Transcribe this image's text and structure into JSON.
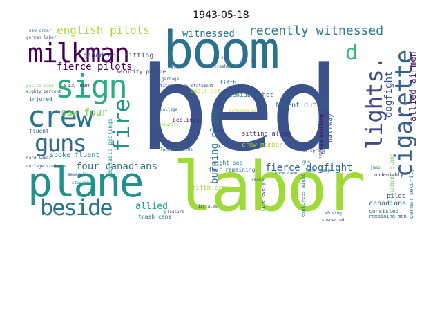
{
  "title": "1943-05-18",
  "words": [
    {
      "text": "bed",
      "color": "#3b528b"
    },
    {
      "text": "labor",
      "color": "#a0da39"
    },
    {
      "text": "boom",
      "color": "#2c728e"
    },
    {
      "text": "plane",
      "color": "#21918c"
    },
    {
      "text": "milkman",
      "color": "#440154"
    },
    {
      "text": "sign",
      "color": "#27ad81"
    },
    {
      "text": "crew",
      "color": "#2c728e"
    },
    {
      "text": "guns",
      "color": "#31688e"
    },
    {
      "text": "fire",
      "color": "#21918c"
    },
    {
      "text": "beside",
      "color": "#2c728e"
    },
    {
      "text": "cigarette",
      "color": "#35608d"
    },
    {
      "text": "lights.",
      "color": "#3e4989"
    },
    {
      "text": "recently witnessed",
      "color": "#2a788e"
    },
    {
      "text": "english pilots",
      "color": "#a5db36"
    },
    {
      "text": "fierce pilots",
      "color": "#440154"
    },
    {
      "text": "witnessed",
      "color": "#2a788e"
    },
    {
      "text": "four canadians",
      "color": "#2c728e"
    },
    {
      "text": "fierce dogfight",
      "color": "#31688e"
    },
    {
      "text": "burning plane",
      "color": "#2c728e"
    },
    {
      "text": "saw four",
      "color": "#75d054"
    },
    {
      "text": "allied airmen",
      "color": "#48186a"
    },
    {
      "text": "dogfight",
      "color": "#3b528b"
    },
    {
      "text": "d",
      "color": "#38b977"
    },
    {
      "text": "allied",
      "color": "#1fa088"
    },
    {
      "text": "canadians",
      "color": "#31688e"
    },
    {
      "text": "undeniably hot",
      "color": "#31688e"
    },
    {
      "text": "fluent dutch",
      "color": "#31688e"
    },
    {
      "text": "canadians sitting",
      "color": "#414487"
    },
    {
      "text": "sitting along",
      "color": "#472d7b"
    },
    {
      "text": "crew member",
      "color": "#b5de2b"
    },
    {
      "text": "halfway",
      "color": "#3b528b"
    },
    {
      "text": "fifth crew",
      "color": "#a0da39"
    },
    {
      "text": "might see",
      "color": "#2a788e"
    },
    {
      "text": "four remaining",
      "color": "#35608d"
    },
    {
      "text": "spoke fluent",
      "color": "#25858e"
    },
    {
      "text": "six men",
      "color": "#414487"
    },
    {
      "text": "injured",
      "color": "#31688e"
    },
    {
      "text": "fluent",
      "color": "#31688e"
    },
    {
      "text": "security police",
      "color": "#433e85"
    },
    {
      "text": "pilot",
      "color": "#3e4989"
    },
    {
      "text": "consisted",
      "color": "#2c728e"
    },
    {
      "text": "trash cans",
      "color": "#2c728e"
    },
    {
      "text": "remaining men",
      "color": "#3b528b"
    },
    {
      "text": "german security",
      "color": "#2a788e"
    },
    {
      "text": "undeniably",
      "color": "#46327e"
    },
    {
      "text": "fifth",
      "color": "#2c728e"
    },
    {
      "text": "peelings",
      "color": "#481f70"
    },
    {
      "text": "vegetable peelings",
      "color": "#1e9b8a"
    },
    {
      "text": "flaming plane",
      "color": "#6ece58"
    },
    {
      "text": "college",
      "color": "#31688e"
    },
    {
      "text": "security",
      "color": "#8fd744"
    },
    {
      "text": "small act",
      "color": "#bddf26"
    },
    {
      "text": "fire every",
      "color": "#3e4989"
    },
    {
      "text": "employees might",
      "color": "#2a788e"
    },
    {
      "text": "throw anything",
      "color": "#440154"
    },
    {
      "text": "landed beside",
      "color": "#2a788e"
    },
    {
      "text": "college students",
      "color": "#31688e"
    },
    {
      "text": "fifteen minutes",
      "color": "#3e4989"
    },
    {
      "text": "d. sprang",
      "color": "#31688e"
    },
    {
      "text": "refusing",
      "color": "#3b528b"
    },
    {
      "text": "suspected",
      "color": "#3b528b"
    },
    {
      "text": "boom came",
      "color": "#31688e"
    },
    {
      "text": "buried",
      "color": "#3b528b"
    },
    {
      "text": "crashed",
      "color": "#3b528b"
    },
    {
      "text": "d. lay",
      "color": "#3b528b"
    },
    {
      "text": "garbage",
      "color": "#31688e"
    },
    {
      "text": "order",
      "color": "#31688e"
    },
    {
      "text": "official statement",
      "color": "#414487"
    },
    {
      "text": "new order",
      "color": "#31688e"
    },
    {
      "text": "german labor",
      "color": "#3b528b"
    },
    {
      "text": "police came",
      "color": "#7ad151"
    },
    {
      "text": "eighty percent",
      "color": "#3e4989"
    },
    {
      "text": "several",
      "color": "#35608d"
    },
    {
      "text": "students",
      "color": "#1f9e89"
    },
    {
      "text": "hard labor",
      "color": "#3b528b"
    },
    {
      "text": "gun",
      "color": "#2a788e"
    },
    {
      "text": "statement",
      "color": "#3b528b"
    },
    {
      "text": "bothered us",
      "color": "#d2e21b"
    },
    {
      "text": "pure anarchy",
      "color": "#3b528b"
    },
    {
      "text": "jump",
      "color": "#31688e"
    },
    {
      "text": "smoke",
      "color": "#31688e"
    },
    {
      "text": "labor camp",
      "color": "#2a788e"
    },
    {
      "text": "dictates",
      "color": "#3b528b"
    },
    {
      "text": "pleasure",
      "color": "#3b528b"
    }
  ]
}
